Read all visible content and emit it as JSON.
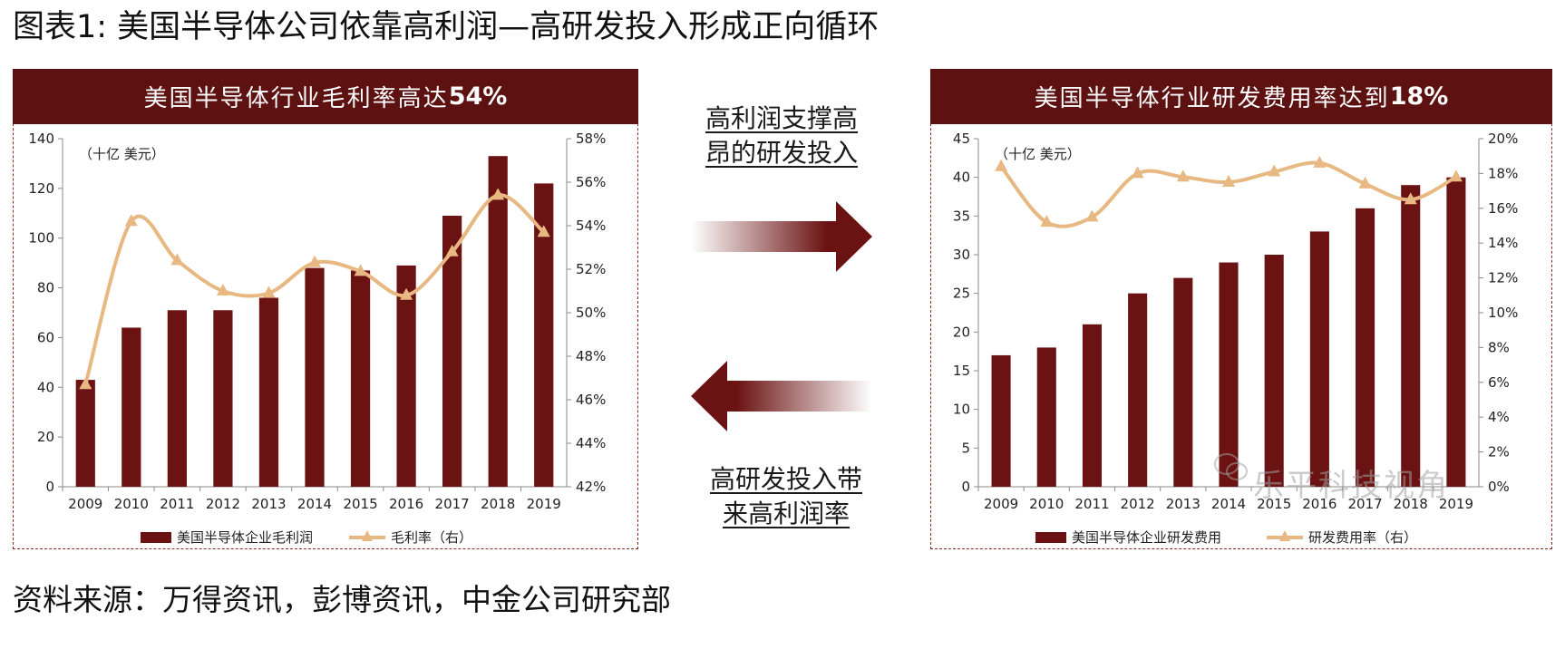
{
  "figure": {
    "title": "图表1: 美国半导体公司依靠高利润—高研发投入形成正向循环",
    "source": "资料来源：万得资讯，彭博资讯，中金公司研究部"
  },
  "middle": {
    "top_line1": "高利润支撑高",
    "top_line2": "昂的研发投入",
    "bottom_line1": "高研发投入带",
    "bottom_line2": "来高利润率"
  },
  "watermark": "乐平科技视角",
  "colors": {
    "bar": "#6b1212",
    "line": "#e8b882",
    "header_bg": "#5d1111"
  },
  "left_panel": {
    "header_text": "美国半导体行业毛利率高达",
    "header_strong": "54%"
  },
  "right_panel": {
    "header_text": "美国半导体行业研发费用率达到",
    "header_strong": "18%"
  },
  "chart_data": [
    {
      "type": "bar",
      "unit_note": "（十亿  美元）",
      "categories": [
        "2009",
        "2010",
        "2011",
        "2012",
        "2013",
        "2014",
        "2015",
        "2016",
        "2017",
        "2018",
        "2019"
      ],
      "ylim": [
        0,
        140
      ],
      "yticks": [
        "0",
        "20",
        "40",
        "60",
        "80",
        "100",
        "120",
        "140"
      ],
      "y2lim": [
        42,
        58
      ],
      "y2ticks": [
        "42%",
        "44%",
        "46%",
        "48%",
        "50%",
        "52%",
        "54%",
        "56%",
        "58%"
      ],
      "series": [
        {
          "name": "美国半导体企业毛利润",
          "type": "bar",
          "axis": "left",
          "values": [
            43,
            64,
            71,
            71,
            76,
            88,
            87,
            89,
            109,
            133,
            122
          ]
        },
        {
          "name": "毛利率（右）",
          "type": "line",
          "axis": "right",
          "values": [
            46.7,
            54.2,
            52.4,
            51.0,
            50.9,
            52.3,
            51.9,
            50.8,
            52.8,
            55.4,
            53.7
          ]
        }
      ],
      "grid": false,
      "legend": "bottom"
    },
    {
      "type": "bar",
      "unit_note": "（十亿  美元）",
      "categories": [
        "2009",
        "2010",
        "2011",
        "2012",
        "2013",
        "2014",
        "2015",
        "2016",
        "2017",
        "2018",
        "2019"
      ],
      "ylim": [
        0,
        45
      ],
      "yticks": [
        "0",
        "5",
        "10",
        "15",
        "20",
        "25",
        "30",
        "35",
        "40",
        "45"
      ],
      "y2lim": [
        0,
        20
      ],
      "y2ticks": [
        "0%",
        "2%",
        "4%",
        "6%",
        "8%",
        "10%",
        "12%",
        "14%",
        "16%",
        "18%",
        "20%"
      ],
      "series": [
        {
          "name": "美国半导体企业研发费用",
          "type": "bar",
          "axis": "left",
          "values": [
            17,
            18,
            21,
            25,
            27,
            29,
            30,
            33,
            36,
            39,
            40
          ]
        },
        {
          "name": "研发费用率（右）",
          "type": "line",
          "axis": "right",
          "values": [
            18.4,
            15.2,
            15.5,
            18.0,
            17.8,
            17.5,
            18.1,
            18.6,
            17.4,
            16.5,
            17.8
          ]
        }
      ],
      "grid": false,
      "legend": "bottom"
    }
  ]
}
